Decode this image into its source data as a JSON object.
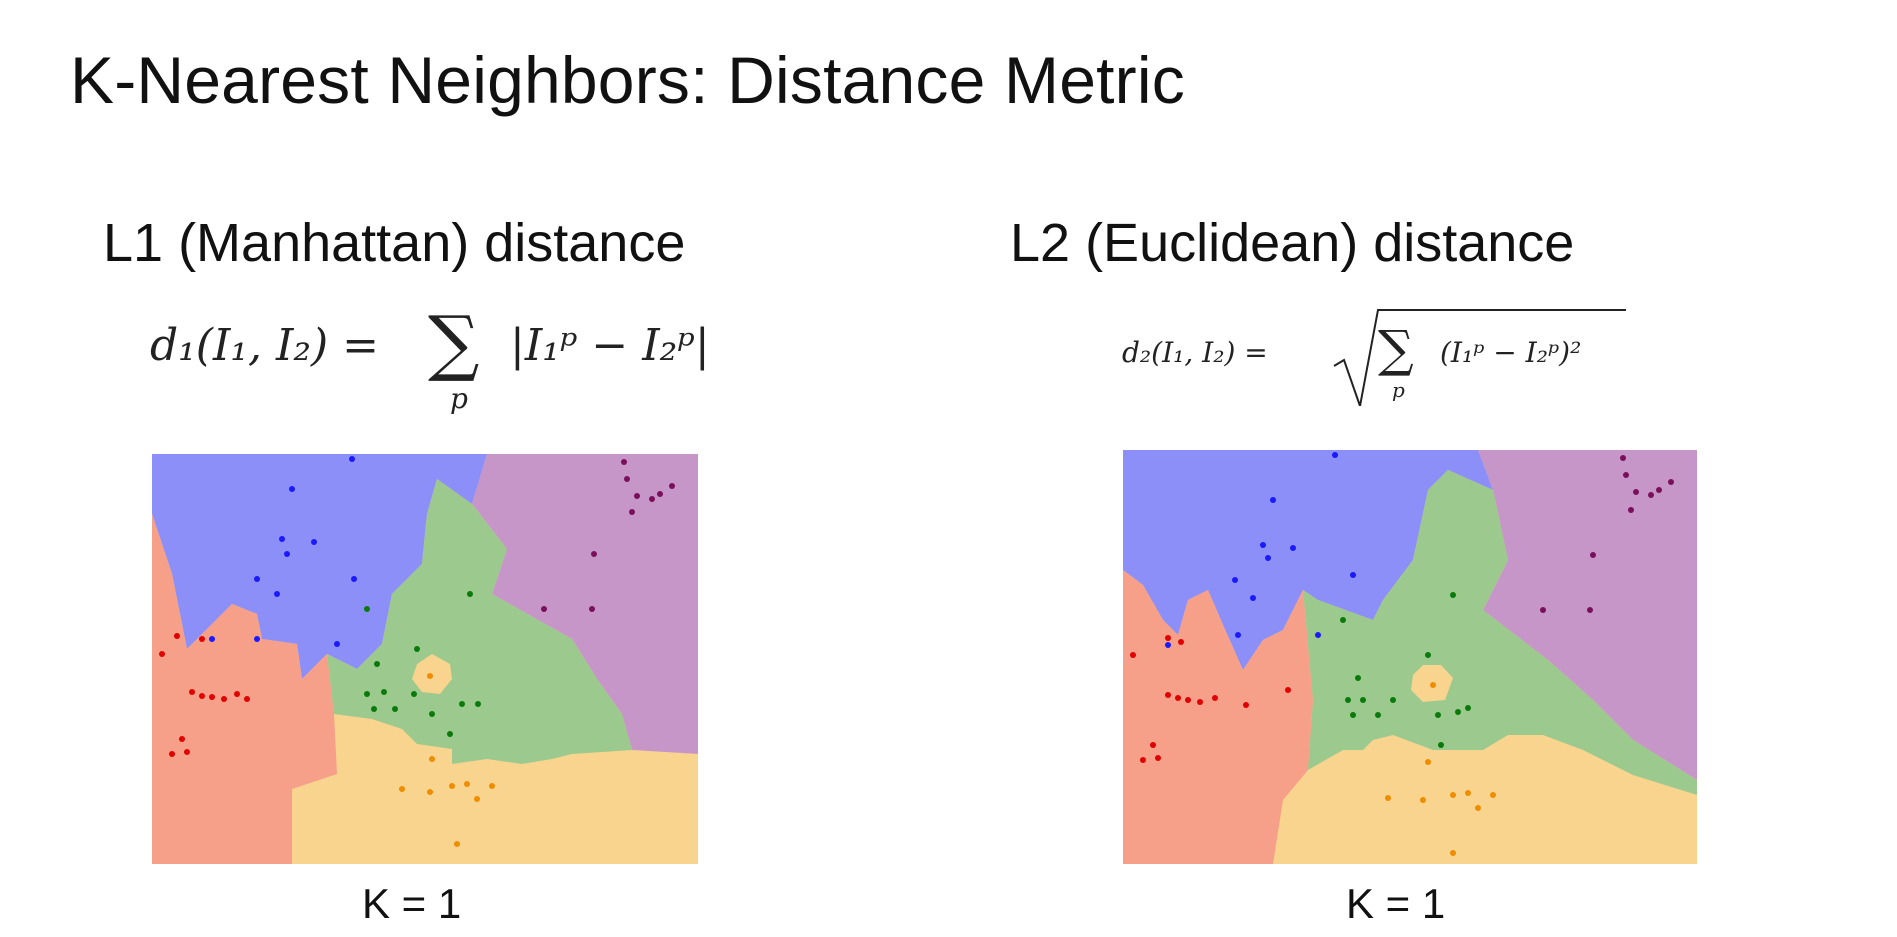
{
  "slide": {
    "title": "K-Nearest Neighbors: Distance Metric"
  },
  "panels": [
    {
      "heading": "L1 (Manhattan) distance",
      "formula": {
        "lhs": "d₁(I₁, I₂) =",
        "sum": "∑",
        "sum_index": "p",
        "rhs": "|I₁ᵖ − I₂ᵖ|"
      },
      "k_label": "K = 1"
    },
    {
      "heading": "L2 (Euclidean) distance",
      "formula": {
        "lhs": "d₂(I₁, I₂) =",
        "sqrt": "√",
        "sum": "∑",
        "sum_index": "p",
        "rhs": "(I₁ᵖ − I₂ᵖ)²"
      },
      "k_label": "K = 1"
    }
  ],
  "class_colors": {
    "blue_region": "#8d8ff9",
    "red_region": "#f6a08a",
    "green_region": "#9cc98d",
    "purple_region": "#c796c9",
    "yellow_region": "#f9d48e",
    "blue_point": "#1a1aff",
    "red_point": "#e00000",
    "green_point": "#0a7a0a",
    "purple_point": "#7a0f5a",
    "yellow_point": "#f08c00"
  }
}
